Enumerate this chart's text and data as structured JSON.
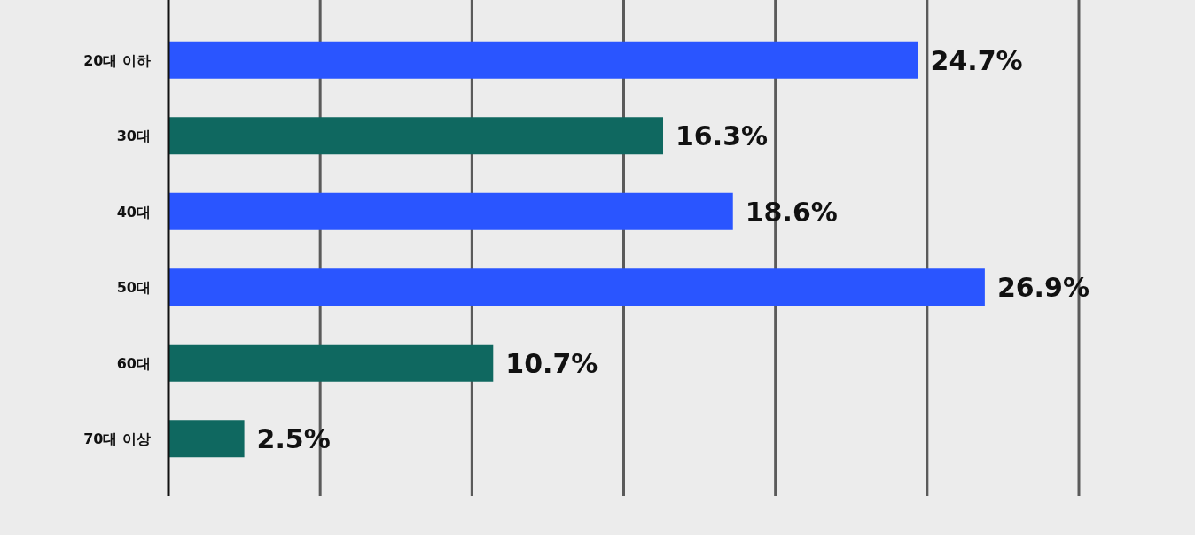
{
  "chart_data": {
    "type": "bar",
    "orientation": "horizontal",
    "categories": [
      "20대 이하",
      "30대",
      "40대",
      "50대",
      "60대",
      "70대 이상"
    ],
    "values": [
      24.7,
      16.3,
      18.6,
      26.9,
      10.7,
      2.5
    ],
    "value_labels": [
      "24.7%",
      "16.3%",
      "18.6%",
      "26.9%",
      "10.7%",
      "2.5%"
    ],
    "colors": [
      "#2a55ff",
      "#0f6860",
      "#2a55ff",
      "#2a55ff",
      "#0f6860",
      "#0f6860"
    ],
    "xlim": [
      0,
      30
    ],
    "xticks": [
      {
        "value": 0,
        "label": null
      },
      {
        "value": 5,
        "label": null
      },
      {
        "value": 10,
        "label": null
      },
      {
        "value": 15,
        "label": null
      },
      {
        "value": 20,
        "label": null
      },
      {
        "value": 25,
        "label": null
      },
      {
        "value": 30,
        "label": null
      }
    ],
    "grid": "x"
  }
}
